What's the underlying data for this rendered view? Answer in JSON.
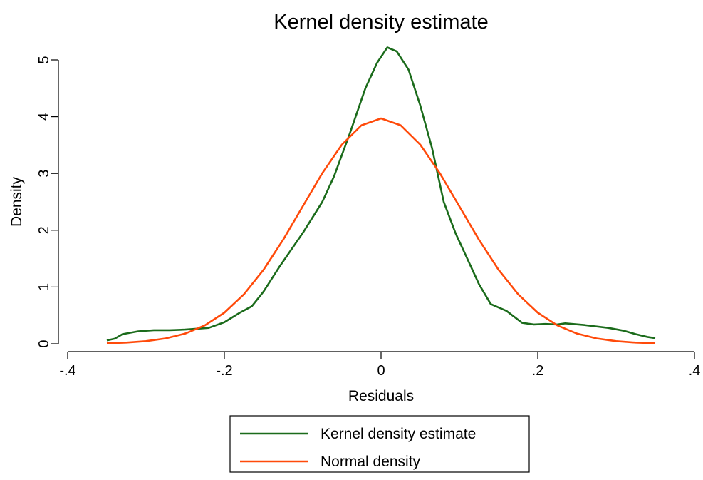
{
  "chart_data": {
    "type": "line",
    "title": "Kernel density estimate",
    "xlabel": "Residuals",
    "ylabel": "Density",
    "xlim": [
      -0.4,
      0.4
    ],
    "ylim": [
      0,
      5
    ],
    "xticks": [
      {
        "value": -0.4,
        "label": "-.4"
      },
      {
        "value": -0.2,
        "label": "-.2"
      },
      0,
      {
        "value": 0.2,
        "label": ".2"
      },
      {
        "value": 0.4,
        "label": ".4"
      }
    ],
    "yticks": [
      0,
      1,
      2,
      3,
      4,
      5
    ],
    "legend": "bottom",
    "series": [
      {
        "name": "Kernel density estimate",
        "color": "#1b6b1b",
        "x": [
          -0.35,
          -0.34,
          -0.33,
          -0.31,
          -0.29,
          -0.27,
          -0.25,
          -0.22,
          -0.2,
          -0.18,
          -0.165,
          -0.15,
          -0.13,
          -0.1,
          -0.075,
          -0.06,
          -0.04,
          -0.02,
          -0.005,
          0.008,
          0.02,
          0.035,
          0.05,
          0.065,
          0.08,
          0.095,
          0.11,
          0.125,
          0.14,
          0.16,
          0.18,
          0.195,
          0.21,
          0.225,
          0.235,
          0.26,
          0.29,
          0.31,
          0.325,
          0.34,
          0.35
        ],
        "values": [
          0.06,
          0.09,
          0.17,
          0.22,
          0.24,
          0.24,
          0.25,
          0.28,
          0.38,
          0.55,
          0.66,
          0.92,
          1.35,
          1.95,
          2.5,
          2.95,
          3.7,
          4.5,
          4.95,
          5.22,
          5.15,
          4.83,
          4.2,
          3.45,
          2.5,
          1.95,
          1.5,
          1.05,
          0.7,
          0.58,
          0.37,
          0.34,
          0.35,
          0.34,
          0.36,
          0.33,
          0.28,
          0.23,
          0.17,
          0.12,
          0.1
        ]
      },
      {
        "name": "Normal density",
        "color": "#ff4a0a",
        "x": [
          -0.35,
          -0.325,
          -0.3,
          -0.275,
          -0.25,
          -0.225,
          -0.2,
          -0.175,
          -0.15,
          -0.125,
          -0.1,
          -0.075,
          -0.05,
          -0.025,
          0,
          0.025,
          0.05,
          0.075,
          0.1,
          0.125,
          0.15,
          0.175,
          0.2,
          0.225,
          0.25,
          0.275,
          0.3,
          0.325,
          0.35
        ],
        "values": [
          0.009,
          0.021,
          0.046,
          0.094,
          0.18,
          0.324,
          0.548,
          0.872,
          1.303,
          1.832,
          2.42,
          3.005,
          3.508,
          3.849,
          3.97,
          3.849,
          3.508,
          3.005,
          2.42,
          1.832,
          1.303,
          0.872,
          0.548,
          0.324,
          0.18,
          0.094,
          0.046,
          0.021,
          0.009
        ]
      }
    ]
  }
}
